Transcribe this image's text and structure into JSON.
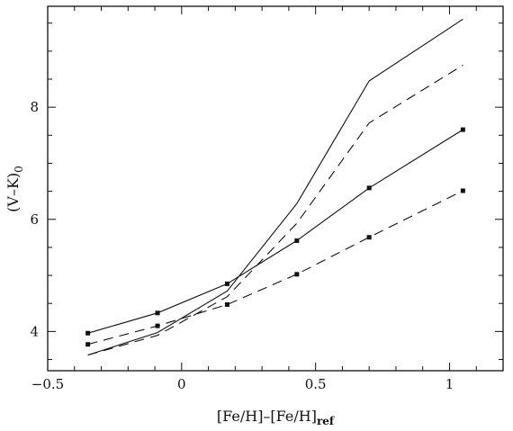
{
  "chart_data": {
    "type": "line",
    "xlabel": "[Fe/H]–[Fe/H]",
    "xlabel_sub": "ref",
    "ylabel": "(V–K)",
    "ylabel_sub": "0",
    "xlim": [
      -0.5,
      1.2
    ],
    "ylim": [
      3.3,
      9.8
    ],
    "xticks": [
      -0.5,
      0,
      0.5,
      1
    ],
    "xtick_labels": [
      "−0.5",
      "0",
      "0.5",
      "1"
    ],
    "yticks": [
      4,
      6,
      8
    ],
    "ytick_labels": [
      "4",
      "6",
      "8"
    ],
    "grid": false,
    "series": [
      {
        "style": "solid",
        "markers": false,
        "x": [
          -0.35,
          -0.09,
          0.17,
          0.43,
          0.7,
          1.05
        ],
        "y": [
          3.58,
          3.98,
          4.72,
          6.28,
          8.47,
          9.57
        ]
      },
      {
        "style": "dashed",
        "markers": false,
        "x": [
          -0.35,
          -0.09,
          0.17,
          0.43,
          0.7,
          1.05
        ],
        "y": [
          3.58,
          3.93,
          4.62,
          5.93,
          7.72,
          8.75
        ]
      },
      {
        "style": "solid",
        "markers": true,
        "x": [
          -0.35,
          -0.09,
          0.17,
          0.43,
          0.7,
          1.05
        ],
        "y": [
          3.97,
          4.33,
          4.85,
          5.62,
          6.56,
          7.6
        ]
      },
      {
        "style": "dashed",
        "markers": true,
        "x": [
          -0.35,
          -0.09,
          0.17,
          0.43,
          0.7,
          1.05
        ],
        "y": [
          3.77,
          4.1,
          4.48,
          5.02,
          5.68,
          6.51
        ]
      }
    ]
  }
}
